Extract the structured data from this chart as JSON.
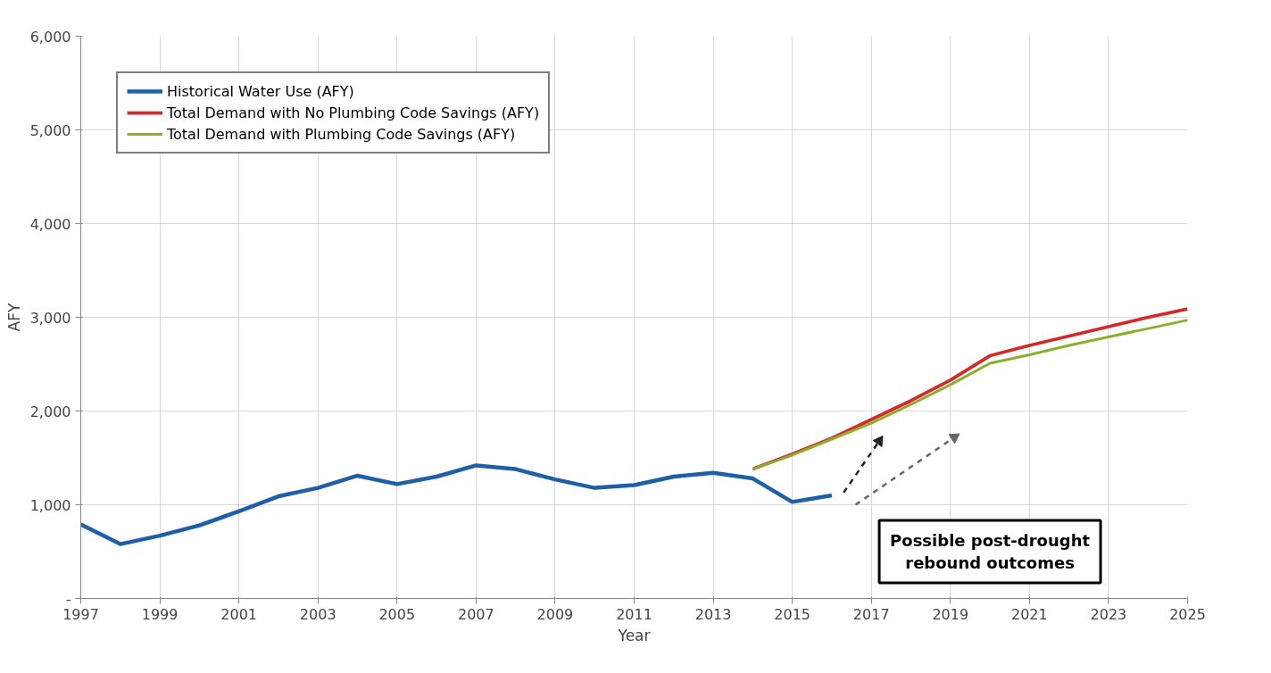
{
  "chart_data": {
    "type": "line",
    "xlabel": "Year",
    "ylabel": "AFY",
    "series": [
      {
        "name": "Historical Water Use (AFY)",
        "color": "#1f5fa8",
        "x": [
          1997,
          1998,
          1999,
          2000,
          2001,
          2002,
          2003,
          2004,
          2005,
          2006,
          2007,
          2008,
          2009,
          2010,
          2011,
          2012,
          2013,
          2014,
          2015,
          2016
        ],
        "values": [
          790,
          580,
          670,
          780,
          930,
          1090,
          1180,
          1310,
          1220,
          1300,
          1420,
          1380,
          1270,
          1180,
          1210,
          1300,
          1340,
          1280,
          1030,
          1100
        ]
      },
      {
        "name": "Total Demand with No Plumbing Code Savings (AFY)",
        "color": "#d42a2a",
        "x": [
          2014,
          2015,
          2016,
          2017,
          2018,
          2019,
          2020,
          2021,
          2022,
          2023,
          2024,
          2025
        ],
        "values": [
          1380,
          1540,
          1710,
          1910,
          2110,
          2330,
          2590,
          2700,
          2800,
          2900,
          3000,
          3090
        ]
      },
      {
        "name": "Total Demand with Plumbing Code Savings (AFY)",
        "color": "#8ab02e",
        "x": [
          2014,
          2015,
          2016,
          2017,
          2018,
          2019,
          2020,
          2021,
          2022,
          2023,
          2024,
          2025
        ],
        "values": [
          1380,
          1530,
          1700,
          1870,
          2070,
          2280,
          2510,
          2600,
          2700,
          2790,
          2880,
          2970
        ]
      },
      {
        "color": "#222222",
        "line_style": "dashed",
        "marker": "triangle",
        "x": [
          2016.3,
          2017.2
        ],
        "values": [
          1130,
          1680
        ]
      },
      {
        "color": "#666666",
        "line_style": "dashed",
        "marker": "triangle",
        "x": [
          2016.6,
          2019.1
        ],
        "values": [
          1000,
          1720
        ]
      }
    ],
    "xlim": [
      1997,
      2025
    ],
    "xticks": [
      1997,
      1999,
      2001,
      2003,
      2005,
      2007,
      2009,
      2011,
      2013,
      2015,
      2017,
      2019,
      2021,
      2023,
      2025
    ],
    "ylim": [
      0,
      6000
    ],
    "yticks": [
      {
        "value": 0,
        "label": "-"
      },
      {
        "value": 1000,
        "label": "1,000"
      },
      {
        "value": 2000,
        "label": "2,000"
      },
      {
        "value": 3000,
        "label": "3,000"
      },
      {
        "value": 4000,
        "label": "4,000"
      },
      {
        "value": 5000,
        "label": "5,000"
      },
      {
        "value": 6000,
        "label": "6,000"
      }
    ],
    "grid": true,
    "legend": "top left",
    "marker": "none",
    "line_style": "solid",
    "annotations": [
      "Possible post-drought rebound outcomes"
    ]
  }
}
